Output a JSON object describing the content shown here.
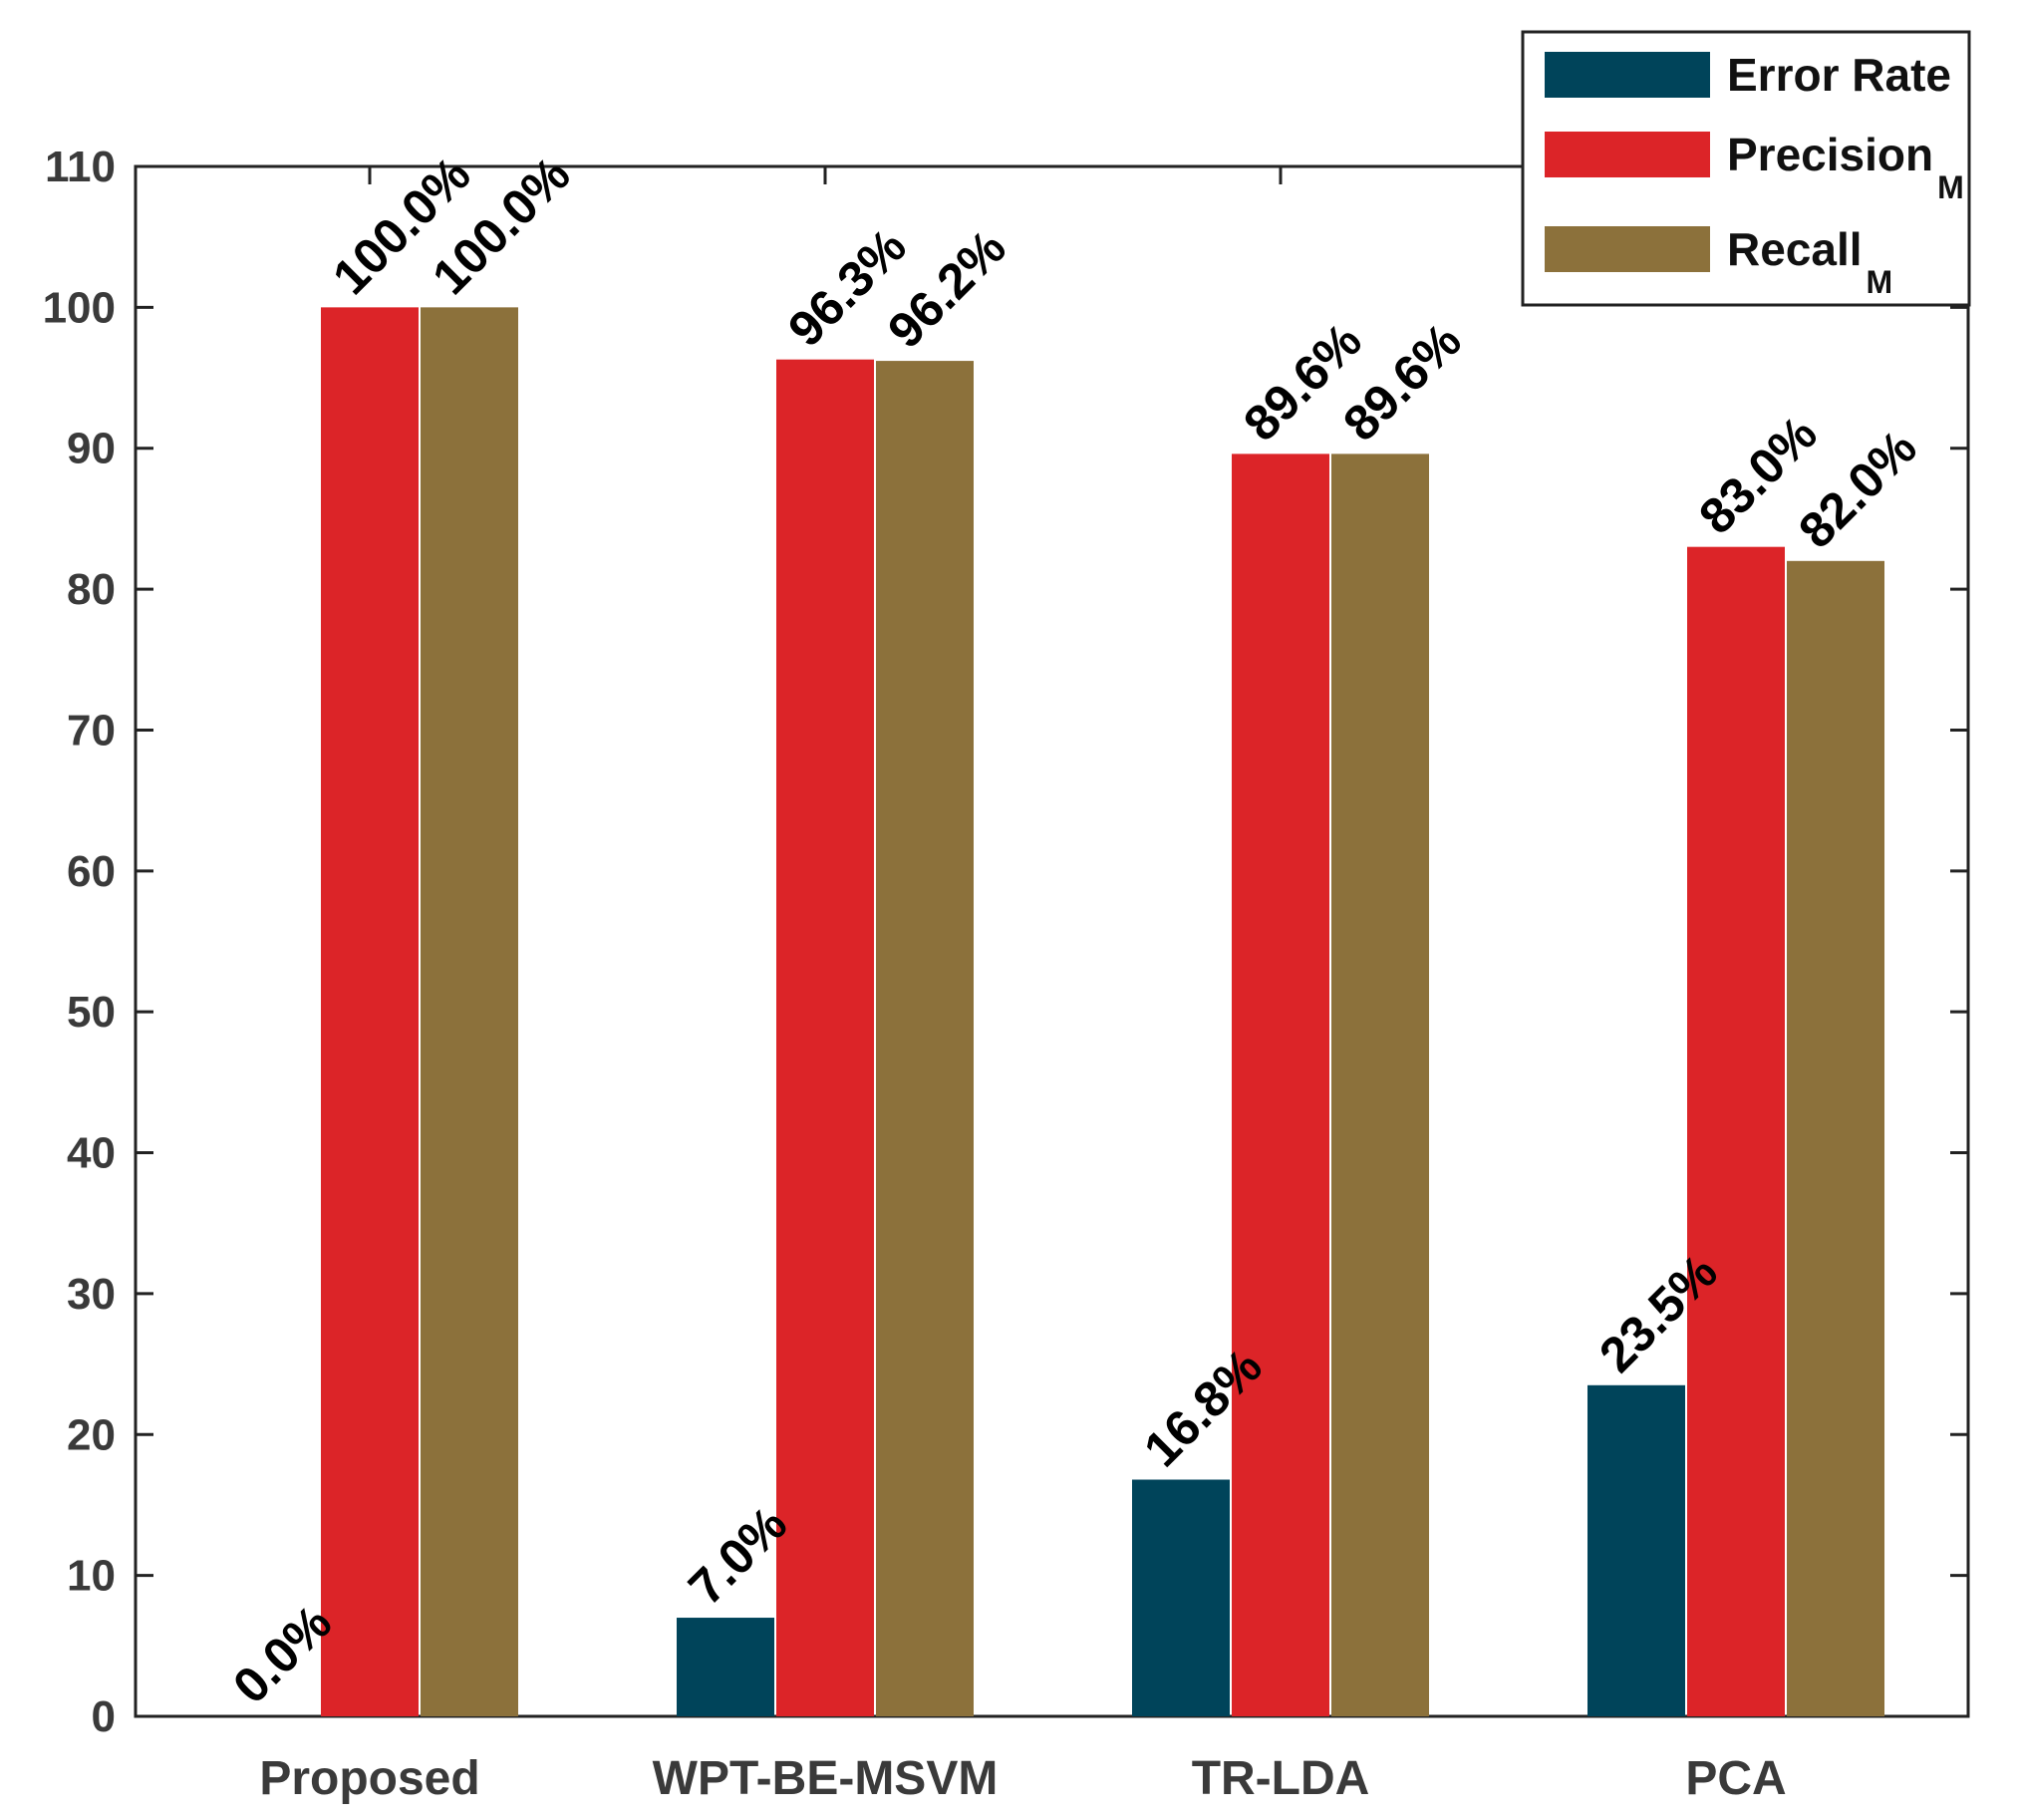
{
  "chart_data": {
    "type": "bar",
    "title": "",
    "xlabel": "",
    "ylabel": "",
    "ylim": [
      0,
      110
    ],
    "yticks": [
      0,
      10,
      20,
      30,
      40,
      50,
      60,
      70,
      80,
      90,
      100,
      110
    ],
    "categories": [
      "Proposed",
      "WPT-BE-MSVM",
      "TR-LDA",
      "PCA"
    ],
    "series": [
      {
        "name": "Error Rate",
        "legend_label": "Error Rate",
        "legend_sub": "",
        "color": "#00445a",
        "values": [
          0.0,
          7.0,
          16.8,
          23.5
        ],
        "labels": [
          "0.0%",
          "7.0%",
          "16.8%",
          "23.5%"
        ]
      },
      {
        "name": "Precision_M",
        "legend_label": "Precision",
        "legend_sub": "M",
        "color": "#dc2428",
        "values": [
          100.0,
          96.3,
          89.6,
          83.0
        ],
        "labels": [
          "100.0%",
          "96.3%",
          "89.6%",
          "83.0%"
        ]
      },
      {
        "name": "Recall_M",
        "legend_label": "Recall",
        "legend_sub": "M",
        "color": "#8c713b",
        "values": [
          100.0,
          96.2,
          89.6,
          82.0
        ],
        "labels": [
          "100.0%",
          "96.2%",
          "89.6%",
          "82.0%"
        ]
      }
    ],
    "legend_position": "top-right",
    "grid": false
  }
}
